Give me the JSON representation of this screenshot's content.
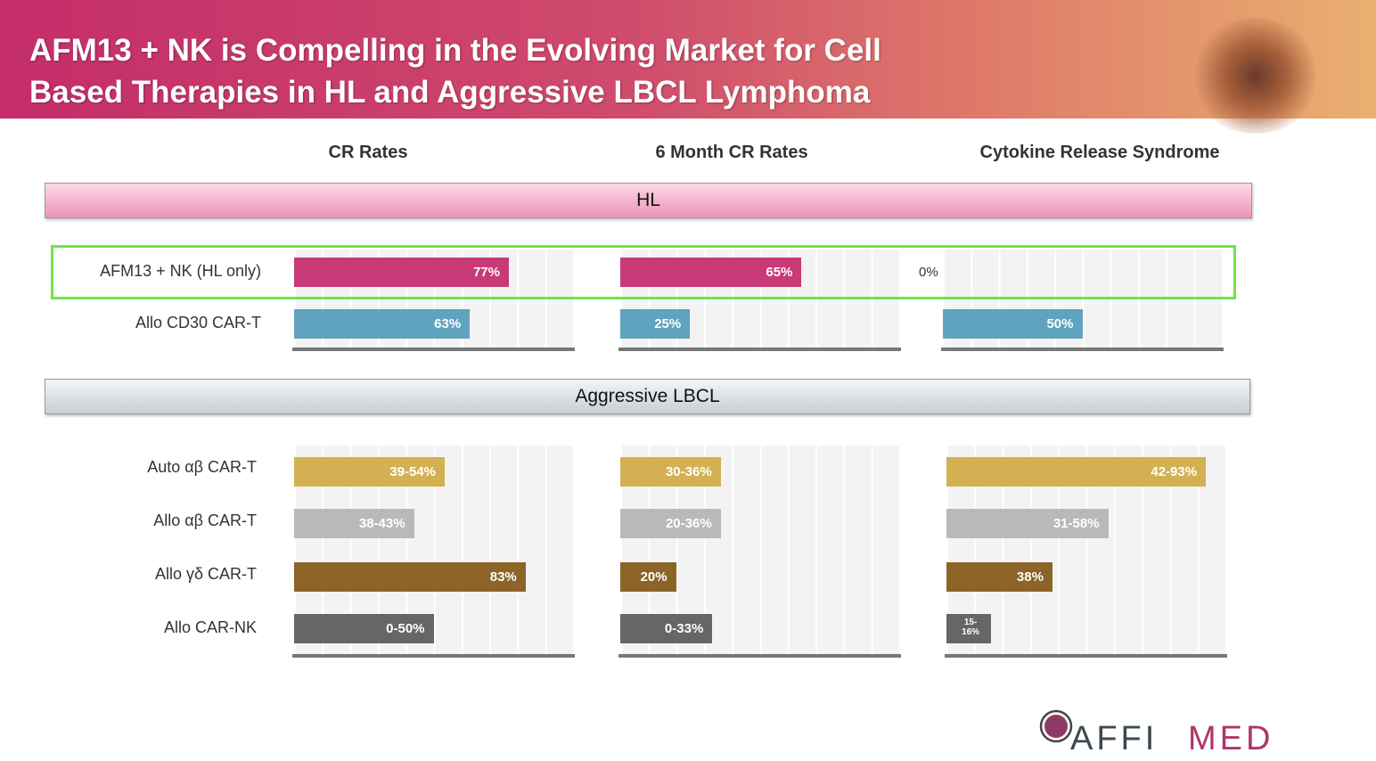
{
  "header": {
    "title": "AFM13 + NK is Compelling in the Evolving Market for Cell\nBased Therapies in HL and Aggressive LBCL Lymphoma"
  },
  "logo": {
    "text": "AFFIMED"
  },
  "chart_data": {
    "type": "bar",
    "orientation": "horizontal",
    "xlim": [
      0,
      100
    ],
    "grid": true,
    "panels": [
      "CR Rates",
      "6 Month CR Rates",
      "Cytokine Release Syndrome"
    ],
    "groups": [
      {
        "name": "HL",
        "highlighted_row": "AFM13 + NK (HL only)",
        "rows": [
          {
            "label": "AFM13 + NK (HL only)",
            "color": "#c83a78",
            "values": [
              {
                "text": "77%",
                "value": 77
              },
              {
                "text": "65%",
                "value": 65
              },
              {
                "text": "0%",
                "value": 0
              }
            ]
          },
          {
            "label": "Allo CD30 CAR-T",
            "color": "#5fa3bf",
            "values": [
              {
                "text": "63%",
                "value": 63
              },
              {
                "text": "25%",
                "value": 25
              },
              {
                "text": "50%",
                "value": 50
              }
            ]
          }
        ]
      },
      {
        "name": "Aggressive LBCL",
        "rows": [
          {
            "label": "Auto αβ CAR-T",
            "color": "#d3b152",
            "values": [
              {
                "text": "39-54%",
                "value": 54
              },
              {
                "text": "30-36%",
                "value": 36
              },
              {
                "text": "42-93%",
                "value": 93
              }
            ]
          },
          {
            "label": "Allo αβ CAR-T",
            "color": "#b9b9b9",
            "values": [
              {
                "text": "38-43%",
                "value": 43
              },
              {
                "text": "20-36%",
                "value": 36
              },
              {
                "text": "31-58%",
                "value": 58
              }
            ]
          },
          {
            "label": "Allo γδ CAR-T",
            "color": "#8c6427",
            "values": [
              {
                "text": "83%",
                "value": 83
              },
              {
                "text": "20%",
                "value": 20
              },
              {
                "text": "38%",
                "value": 38
              }
            ]
          },
          {
            "label": "Allo CAR-NK",
            "color": "#666666",
            "values": [
              {
                "text": "0-50%",
                "value": 50
              },
              {
                "text": "0-33%",
                "value": 33
              },
              {
                "text": "15-16%",
                "value": 16
              }
            ]
          }
        ]
      }
    ]
  }
}
